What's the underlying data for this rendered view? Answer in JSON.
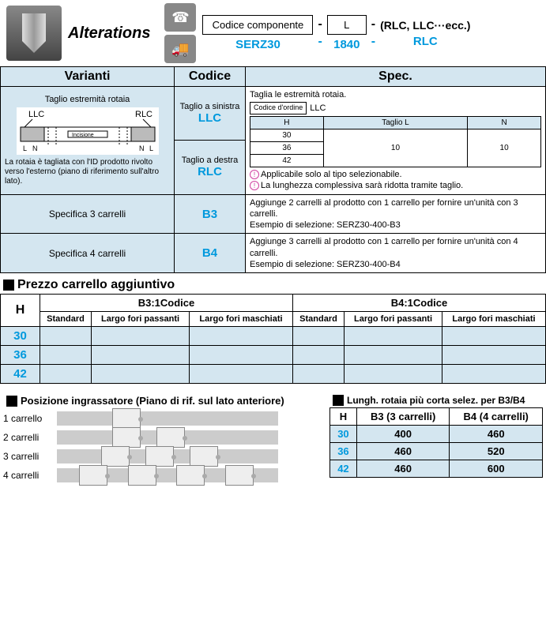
{
  "header": {
    "title": "Alterations",
    "code_label": "Codice componente",
    "l_label": "L",
    "suffix_label": "(RLC, LLC···ecc.)",
    "example_code": "SERZ30",
    "example_l": "1840",
    "example_suffix": "RLC",
    "dash": "-"
  },
  "main_table": {
    "headers": {
      "varianti": "Varianti",
      "codice": "Codice",
      "spec": "Spec."
    },
    "row1": {
      "varianti_title": "Taglio estremità rotaia",
      "llc": "LLC",
      "rlc": "RLC",
      "incisione": "Incisione",
      "l": "L",
      "n": "N",
      "desc": "La rotaia è tagliata con l'ID prodotto rivolto verso l'esterno (piano di riferimento sull'altro lato).",
      "code1_label": "Taglio a sinistra",
      "code1": "LLC",
      "code2_label": "Taglio a destra",
      "code2": "RLC",
      "spec_title": "Taglia le estremità rotaia.",
      "mini_header": "Codice d'ordine",
      "mini_code": "LLC",
      "mini_cols": {
        "h": "H",
        "taglio_l": "Taglio L",
        "n": "N"
      },
      "mini_rows": [
        {
          "h": "30",
          "l": "",
          "n": ""
        },
        {
          "h": "36",
          "l": "10",
          "n": "10"
        },
        {
          "h": "42",
          "l": "",
          "n": ""
        }
      ],
      "note1": "Applicabile solo al tipo selezionabile.",
      "note2": "La lunghezza complessiva sarà ridotta tramite taglio."
    },
    "row2": {
      "varianti": "Specifica 3 carrelli",
      "codice": "B3",
      "spec": "Aggiunge 2 carrelli al prodotto con 1 carrello per fornire un'unità con 3 carrelli.\nEsempio di selezione: SERZ30-400-B3"
    },
    "row3": {
      "varianti": "Specifica 4 carrelli",
      "codice": "B4",
      "spec": "Aggiunge 3 carrelli al prodotto con 1 carrello per fornire un'unità con 4 carrelli.\nEsempio di selezione: SERZ30-400-B4"
    }
  },
  "price_section": {
    "title": "Prezzo carrello aggiuntivo",
    "h": "H",
    "b3_header": "B3:1Codice",
    "b4_header": "B4:1Codice",
    "sub_headers": {
      "standard": "Standard",
      "largo_passanti": "Largo fori passanti",
      "largo_maschiati": "Largo fori maschiati"
    },
    "rows": [
      {
        "h": "30"
      },
      {
        "h": "36"
      },
      {
        "h": "42"
      }
    ]
  },
  "position_section": {
    "title": "Posizione ingrassatore (Piano di rif. sul lato anteriore)",
    "rows": [
      {
        "label": "1 carrello",
        "carriages": [
          25
        ]
      },
      {
        "label": "2 carrelli",
        "carriages": [
          25,
          45
        ]
      },
      {
        "label": "3 carrelli",
        "carriages": [
          20,
          40,
          60
        ]
      },
      {
        "label": "4 carrelli",
        "carriages": [
          10,
          32,
          54,
          76
        ]
      }
    ]
  },
  "length_section": {
    "title": "Lungh. rotaia più corta selez. per B3/B4",
    "h": "H",
    "b3": "B3 (3 carrelli)",
    "b4": "B4 (4 carrelli)",
    "rows": [
      {
        "h": "30",
        "b3": "400",
        "b4": "460"
      },
      {
        "h": "36",
        "b3": "460",
        "b4": "520"
      },
      {
        "h": "42",
        "b3": "460",
        "b4": "600"
      }
    ]
  },
  "colors": {
    "blue_text": "#0099dd",
    "light_blue_bg": "#d4e6f0",
    "pink": "#d040a0"
  }
}
